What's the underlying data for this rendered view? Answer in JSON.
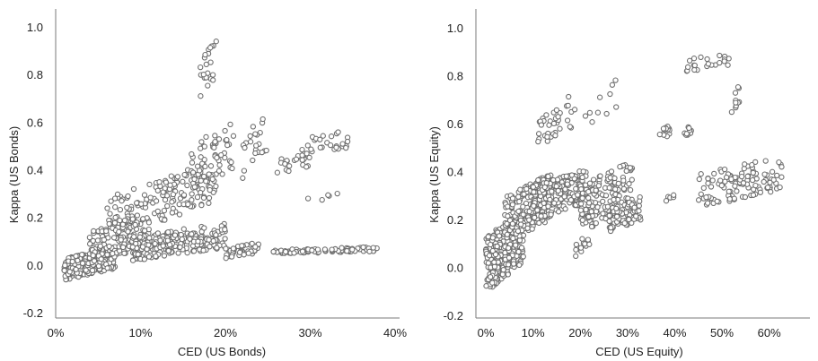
{
  "chart_data": [
    {
      "type": "scatter",
      "title": "",
      "xlabel": "CED (US Bonds)",
      "ylabel": "Kappa (US Bonds)",
      "xlim": [
        0,
        0.4
      ],
      "ylim": [
        -0.2,
        1.05
      ],
      "xticks": [
        0,
        0.1,
        0.2,
        0.3,
        0.4
      ],
      "xtick_labels": [
        "0%",
        "10%",
        "20%",
        "30%",
        "40%"
      ],
      "yticks": [
        -0.2,
        0.0,
        0.2,
        0.4,
        0.6,
        0.8,
        1.0
      ],
      "ytick_labels": [
        "-0.2",
        "0.0",
        "0.2",
        "0.4",
        "0.6",
        "0.8",
        "1.0"
      ],
      "grid": false,
      "legend": "none",
      "marker_color": "#6f6f6f",
      "clusters": [
        {
          "x": [
            0.01,
            0.07
          ],
          "y": [
            -0.06,
            0.08
          ],
          "n": 260
        },
        {
          "x": [
            0.04,
            0.11
          ],
          "y": [
            0.0,
            0.22
          ],
          "n": 150
        },
        {
          "x": [
            0.06,
            0.12
          ],
          "y": [
            0.15,
            0.36
          ],
          "n": 55
        },
        {
          "x": [
            0.09,
            0.2
          ],
          "y": [
            0.02,
            0.18
          ],
          "n": 220
        },
        {
          "x": [
            0.12,
            0.19
          ],
          "y": [
            0.18,
            0.45
          ],
          "n": 110
        },
        {
          "x": [
            0.16,
            0.21
          ],
          "y": [
            0.3,
            0.62
          ],
          "n": 55
        },
        {
          "x": [
            0.17,
            0.19
          ],
          "y": [
            0.7,
            0.97
          ],
          "n": 22
        },
        {
          "x": [
            0.2,
            0.24
          ],
          "y": [
            0.03,
            0.1
          ],
          "n": 40
        },
        {
          "x": [
            0.22,
            0.25
          ],
          "y": [
            0.35,
            0.65
          ],
          "n": 22
        },
        {
          "x": [
            0.26,
            0.3
          ],
          "y": [
            0.38,
            0.48
          ],
          "n": 20
        },
        {
          "x": [
            0.25,
            0.38
          ],
          "y": [
            0.05,
            0.08
          ],
          "n": 90
        },
        {
          "x": [
            0.29,
            0.35
          ],
          "y": [
            0.45,
            0.58
          ],
          "n": 30
        },
        {
          "x": [
            0.29,
            0.34
          ],
          "y": [
            0.27,
            0.31
          ],
          "n": 5
        }
      ]
    },
    {
      "type": "scatter",
      "title": "",
      "xlabel": "CED (US Equity)",
      "ylabel": "Kappa (US Equity)",
      "xlim": [
        0,
        0.65
      ],
      "ylim": [
        -0.2,
        1.05
      ],
      "xticks": [
        0,
        0.1,
        0.2,
        0.3,
        0.4,
        0.5,
        0.6
      ],
      "xtick_labels": [
        "0%",
        "10%",
        "20%",
        "30%",
        "40%",
        "50%",
        "60%"
      ],
      "yticks": [
        -0.2,
        0.0,
        0.2,
        0.4,
        0.6,
        0.8,
        1.0
      ],
      "ytick_labels": [
        "-0.2",
        "0.0",
        "0.2",
        "0.4",
        "0.6",
        "0.8",
        "1.0"
      ],
      "grid": false,
      "legend": "none",
      "marker_color": "#6f6f6f",
      "clusters": [
        {
          "x": [
            0.0,
            0.08
          ],
          "y": [
            -0.1,
            0.25
          ],
          "n": 280
        },
        {
          "x": [
            0.04,
            0.14
          ],
          "y": [
            0.1,
            0.4
          ],
          "n": 200
        },
        {
          "x": [
            0.1,
            0.22
          ],
          "y": [
            0.2,
            0.42
          ],
          "n": 190
        },
        {
          "x": [
            0.2,
            0.31
          ],
          "y": [
            0.15,
            0.45
          ],
          "n": 150
        },
        {
          "x": [
            0.26,
            0.33
          ],
          "y": [
            0.15,
            0.3
          ],
          "n": 80
        },
        {
          "x": [
            0.11,
            0.16
          ],
          "y": [
            0.5,
            0.68
          ],
          "n": 30
        },
        {
          "x": [
            0.17,
            0.28
          ],
          "y": [
            0.55,
            0.8
          ],
          "n": 18
        },
        {
          "x": [
            0.36,
            0.39
          ],
          "y": [
            0.52,
            0.6
          ],
          "n": 15
        },
        {
          "x": [
            0.42,
            0.44
          ],
          "y": [
            0.55,
            0.6
          ],
          "n": 10
        },
        {
          "x": [
            0.42,
            0.52
          ],
          "y": [
            0.82,
            0.9
          ],
          "n": 22
        },
        {
          "x": [
            0.52,
            0.54
          ],
          "y": [
            0.62,
            0.78
          ],
          "n": 10
        },
        {
          "x": [
            0.45,
            0.63
          ],
          "y": [
            0.25,
            0.47
          ],
          "n": 110
        },
        {
          "x": [
            0.38,
            0.4
          ],
          "y": [
            0.28,
            0.31
          ],
          "n": 6
        },
        {
          "x": [
            0.19,
            0.22
          ],
          "y": [
            0.05,
            0.14
          ],
          "n": 15
        }
      ]
    }
  ]
}
